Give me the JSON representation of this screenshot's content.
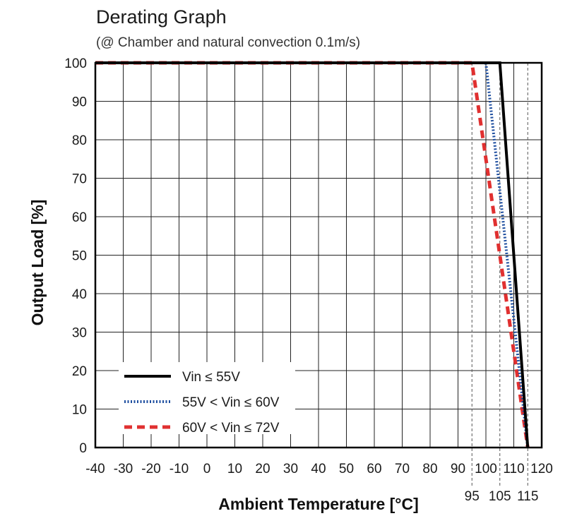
{
  "chart_data": {
    "type": "line",
    "title": "Derating Graph",
    "subtitle": "(@ Chamber and natural convection 0.1m/s)",
    "xlabel": "Ambient Temperature [°C]",
    "ylabel": "Output Load [%]",
    "xlim": [
      -40,
      120
    ],
    "ylim": [
      0,
      100
    ],
    "x_ticks": [
      -40,
      -30,
      -20,
      -10,
      0,
      10,
      20,
      30,
      40,
      50,
      60,
      70,
      80,
      90,
      100,
      110,
      120
    ],
    "y_ticks": [
      0,
      10,
      20,
      30,
      40,
      50,
      60,
      70,
      80,
      90,
      100
    ],
    "extra_x_ticks": [
      95,
      105,
      115
    ],
    "grid": true,
    "legend_position": "bottom-left",
    "series": [
      {
        "name": "Vin ≤ 55V",
        "x": [
          -40,
          105,
          115
        ],
        "y": [
          100,
          100,
          0
        ],
        "color": "#000000",
        "style": "solid"
      },
      {
        "name": "55V < Vin ≤ 60V",
        "x": [
          -40,
          100,
          115
        ],
        "y": [
          100,
          100,
          0
        ],
        "color": "#1f4fa0",
        "style": "dotted"
      },
      {
        "name": "60V < Vin ≤ 72V",
        "x": [
          -40,
          95,
          115
        ],
        "y": [
          100,
          100,
          0
        ],
        "color": "#e03030",
        "style": "dashed"
      }
    ]
  }
}
